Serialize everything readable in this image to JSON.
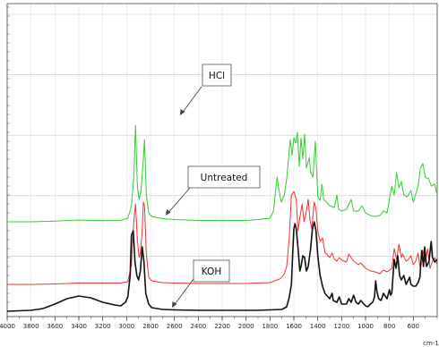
{
  "chart_data": {
    "type": "line",
    "title": "",
    "xlabel": "",
    "ylabel": "",
    "xlim": [
      4000,
      400
    ],
    "x_reversed": true,
    "grid": true,
    "tick_labels": [
      "4000",
      "3800",
      "3600",
      "3400",
      "3200",
      "3000",
      "2800",
      "2600",
      "2400",
      "2200",
      "2000",
      "1800",
      "1600",
      "1400",
      "1200",
      "1000",
      "800",
      "600"
    ],
    "unit_label": "cm-1",
    "series": [
      {
        "name": "HCl",
        "color": "#33cc33",
        "offset": 100,
        "points": [
          [
            4000,
            0
          ],
          [
            3800,
            0
          ],
          [
            3600,
            0.8
          ],
          [
            3400,
            2
          ],
          [
            3200,
            1.2
          ],
          [
            3050,
            1.5
          ],
          [
            2990,
            4
          ],
          [
            2960,
            18
          ],
          [
            2940,
            50
          ],
          [
            2925,
            108
          ],
          [
            2910,
            40
          ],
          [
            2895,
            25
          ],
          [
            2880,
            34
          ],
          [
            2860,
            70
          ],
          [
            2850,
            92
          ],
          [
            2835,
            30
          ],
          [
            2815,
            10
          ],
          [
            2790,
            6
          ],
          [
            2700,
            3.5
          ],
          [
            2600,
            2.5
          ],
          [
            2400,
            1.5
          ],
          [
            2200,
            1.5
          ],
          [
            2000,
            1.5
          ],
          [
            1900,
            2.5
          ],
          [
            1800,
            4
          ],
          [
            1770,
            12
          ],
          [
            1740,
            50
          ],
          [
            1725,
            36
          ],
          [
            1705,
            22
          ],
          [
            1680,
            30
          ],
          [
            1660,
            48
          ],
          [
            1640,
            78
          ],
          [
            1630,
            92
          ],
          [
            1615,
            74
          ],
          [
            1600,
            94
          ],
          [
            1585,
            88
          ],
          [
            1570,
            100
          ],
          [
            1555,
            62
          ],
          [
            1540,
            94
          ],
          [
            1525,
            70
          ],
          [
            1510,
            98
          ],
          [
            1495,
            60
          ],
          [
            1470,
            72
          ],
          [
            1460,
            55
          ],
          [
            1440,
            50
          ],
          [
            1420,
            90
          ],
          [
            1400,
            28
          ],
          [
            1380,
            24
          ],
          [
            1365,
            42
          ],
          [
            1350,
            25
          ],
          [
            1300,
            18
          ],
          [
            1260,
            16
          ],
          [
            1240,
            30
          ],
          [
            1225,
            14
          ],
          [
            1200,
            12
          ],
          [
            1160,
            14
          ],
          [
            1120,
            25
          ],
          [
            1100,
            12
          ],
          [
            1060,
            12
          ],
          [
            1030,
            18
          ],
          [
            1000,
            10
          ],
          [
            960,
            7
          ],
          [
            920,
            6
          ],
          [
            880,
            7
          ],
          [
            850,
            12
          ],
          [
            820,
            10
          ],
          [
            780,
            40
          ],
          [
            760,
            30
          ],
          [
            740,
            55
          ],
          [
            720,
            38
          ],
          [
            700,
            45
          ],
          [
            680,
            30
          ],
          [
            650,
            28
          ],
          [
            620,
            35
          ],
          [
            600,
            22
          ],
          [
            560,
            40
          ],
          [
            540,
            60
          ],
          [
            520,
            65
          ],
          [
            500,
            50
          ],
          [
            470,
            48
          ],
          [
            450,
            40
          ],
          [
            420,
            42
          ],
          [
            400,
            30
          ]
        ]
      },
      {
        "name": "Untreated",
        "color": "#ee3333",
        "offset": 30,
        "points": [
          [
            4000,
            0
          ],
          [
            3800,
            0
          ],
          [
            3600,
            0.5
          ],
          [
            3400,
            1.5
          ],
          [
            3200,
            1.5
          ],
          [
            3050,
            1.5
          ],
          [
            2990,
            3
          ],
          [
            2960,
            22
          ],
          [
            2940,
            70
          ],
          [
            2925,
            90
          ],
          [
            2910,
            50
          ],
          [
            2895,
            30
          ],
          [
            2885,
            35
          ],
          [
            2870,
            60
          ],
          [
            2860,
            92
          ],
          [
            2850,
            88
          ],
          [
            2835,
            35
          ],
          [
            2815,
            8
          ],
          [
            2790,
            4
          ],
          [
            2700,
            2
          ],
          [
            2600,
            1.5
          ],
          [
            2400,
            1
          ],
          [
            2200,
            1
          ],
          [
            2000,
            1
          ],
          [
            1900,
            1.5
          ],
          [
            1800,
            2
          ],
          [
            1760,
            4
          ],
          [
            1720,
            6
          ],
          [
            1700,
            8
          ],
          [
            1680,
            12
          ],
          [
            1660,
            20
          ],
          [
            1640,
            50
          ],
          [
            1620,
            100
          ],
          [
            1600,
            104
          ],
          [
            1580,
            95
          ],
          [
            1565,
            60
          ],
          [
            1550,
            75
          ],
          [
            1530,
            90
          ],
          [
            1515,
            70
          ],
          [
            1500,
            78
          ],
          [
            1480,
            95
          ],
          [
            1465,
            72
          ],
          [
            1450,
            62
          ],
          [
            1430,
            92
          ],
          [
            1415,
            85
          ],
          [
            1400,
            60
          ],
          [
            1380,
            48
          ],
          [
            1360,
            52
          ],
          [
            1340,
            36
          ],
          [
            1320,
            33
          ],
          [
            1300,
            30
          ],
          [
            1280,
            35
          ],
          [
            1260,
            28
          ],
          [
            1240,
            26
          ],
          [
            1220,
            30
          ],
          [
            1200,
            27
          ],
          [
            1160,
            25
          ],
          [
            1140,
            34
          ],
          [
            1120,
            30
          ],
          [
            1100,
            26
          ],
          [
            1060,
            22
          ],
          [
            1040,
            24
          ],
          [
            1000,
            18
          ],
          [
            960,
            15
          ],
          [
            920,
            14
          ],
          [
            880,
            12
          ],
          [
            850,
            16
          ],
          [
            820,
            14
          ],
          [
            780,
            18
          ],
          [
            760,
            40
          ],
          [
            740,
            28
          ],
          [
            720,
            45
          ],
          [
            700,
            30
          ],
          [
            690,
            34
          ],
          [
            660,
            26
          ],
          [
            640,
            28
          ],
          [
            620,
            32
          ],
          [
            600,
            22
          ],
          [
            580,
            26
          ],
          [
            560,
            35
          ],
          [
            545,
            20
          ],
          [
            520,
            38
          ],
          [
            500,
            25
          ],
          [
            480,
            40
          ],
          [
            460,
            18
          ],
          [
            440,
            26
          ],
          [
            420,
            30
          ],
          [
            400,
            22
          ]
        ]
      },
      {
        "name": "KOH",
        "color": "#111111",
        "offset": 0,
        "points": [
          [
            4000,
            0
          ],
          [
            3900,
            0.5
          ],
          [
            3800,
            1
          ],
          [
            3700,
            3
          ],
          [
            3600,
            8
          ],
          [
            3500,
            14
          ],
          [
            3400,
            17
          ],
          [
            3300,
            15
          ],
          [
            3200,
            10
          ],
          [
            3100,
            7
          ],
          [
            3050,
            6
          ],
          [
            3010,
            10
          ],
          [
            2990,
            16
          ],
          [
            2970,
            40
          ],
          [
            2960,
            85
          ],
          [
            2945,
            90
          ],
          [
            2930,
            55
          ],
          [
            2915,
            40
          ],
          [
            2900,
            35
          ],
          [
            2885,
            45
          ],
          [
            2870,
            72
          ],
          [
            2855,
            55
          ],
          [
            2840,
            20
          ],
          [
            2815,
            8
          ],
          [
            2790,
            4
          ],
          [
            2700,
            2
          ],
          [
            2600,
            1.5
          ],
          [
            2400,
            1
          ],
          [
            2200,
            1
          ],
          [
            2000,
            1
          ],
          [
            1900,
            1
          ],
          [
            1800,
            1.5
          ],
          [
            1700,
            2
          ],
          [
            1660,
            5
          ],
          [
            1640,
            15
          ],
          [
            1620,
            30
          ],
          [
            1610,
            65
          ],
          [
            1600,
            92
          ],
          [
            1590,
            98
          ],
          [
            1580,
            92
          ],
          [
            1565,
            70
          ],
          [
            1550,
            45
          ],
          [
            1540,
            50
          ],
          [
            1525,
            62
          ],
          [
            1510,
            60
          ],
          [
            1495,
            45
          ],
          [
            1480,
            50
          ],
          [
            1460,
            70
          ],
          [
            1445,
            92
          ],
          [
            1430,
            100
          ],
          [
            1415,
            90
          ],
          [
            1400,
            62
          ],
          [
            1380,
            40
          ],
          [
            1360,
            28
          ],
          [
            1340,
            20
          ],
          [
            1320,
            17
          ],
          [
            1300,
            14
          ],
          [
            1280,
            20
          ],
          [
            1270,
            12
          ],
          [
            1240,
            10
          ],
          [
            1220,
            16
          ],
          [
            1200,
            8
          ],
          [
            1160,
            8
          ],
          [
            1140,
            14
          ],
          [
            1120,
            10
          ],
          [
            1100,
            18
          ],
          [
            1080,
            10
          ],
          [
            1060,
            8
          ],
          [
            1040,
            12
          ],
          [
            1020,
            9
          ],
          [
            1000,
            6
          ],
          [
            980,
            5
          ],
          [
            960,
            8
          ],
          [
            940,
            10
          ],
          [
            925,
            16
          ],
          [
            915,
            34
          ],
          [
            905,
            22
          ],
          [
            890,
            14
          ],
          [
            870,
            12
          ],
          [
            850,
            20
          ],
          [
            820,
            14
          ],
          [
            800,
            24
          ],
          [
            790,
            18
          ],
          [
            780,
            20
          ],
          [
            770,
            40
          ],
          [
            760,
            58
          ],
          [
            745,
            48
          ],
          [
            730,
            62
          ],
          [
            715,
            40
          ],
          [
            700,
            35
          ],
          [
            680,
            40
          ],
          [
            660,
            30
          ],
          [
            645,
            34
          ],
          [
            630,
            38
          ],
          [
            620,
            30
          ],
          [
            600,
            28
          ],
          [
            580,
            28
          ],
          [
            560,
            32
          ],
          [
            545,
            38
          ],
          [
            530,
            68
          ],
          [
            515,
            50
          ],
          [
            505,
            72
          ],
          [
            490,
            50
          ],
          [
            470,
            55
          ],
          [
            450,
            78
          ],
          [
            440,
            60
          ],
          [
            420,
            55
          ],
          [
            400,
            58
          ]
        ]
      }
    ],
    "annotations": [
      {
        "text": "HCl",
        "series": "HCl",
        "arrow_to_x": 2600
      },
      {
        "text": "Untreated",
        "series": "Untreated",
        "arrow_to_x": 2710
      },
      {
        "text": "KOH",
        "series": "KOH",
        "arrow_to_x": 2630
      }
    ]
  }
}
